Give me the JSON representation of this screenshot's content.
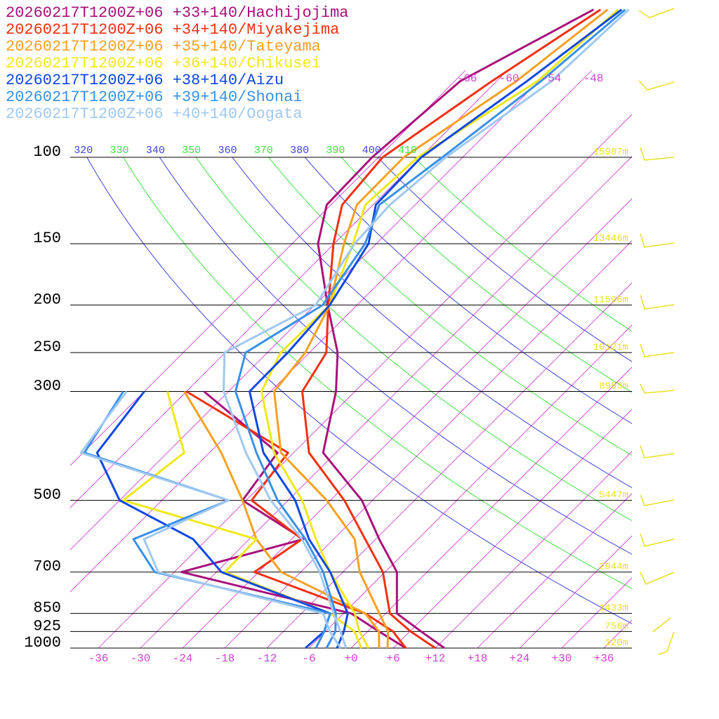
{
  "chart_data": {
    "type": "skewt",
    "levels": [
      1000,
      925,
      850,
      700,
      600,
      500,
      400,
      300,
      250,
      200,
      150,
      125,
      100,
      70,
      50
    ],
    "yticks": [
      100,
      150,
      200,
      250,
      300,
      500,
      700,
      850,
      925,
      1000
    ],
    "height_labels": [
      "15987m",
      "13446m",
      "11596m",
      "10121m",
      "8953m",
      "5447m",
      "2944m",
      "1433m",
      "758m",
      "120m"
    ],
    "xticks": [
      -36,
      -30,
      -24,
      -18,
      -12,
      -6,
      {
        "value": 0,
        "label": "+0"
      },
      {
        "value": 6,
        "label": "+6"
      },
      {
        "value": 12,
        "label": "+12"
      },
      {
        "value": 18,
        "label": "+18"
      },
      {
        "value": 24,
        "label": "+24"
      },
      {
        "value": 30,
        "label": "+30"
      },
      {
        "value": 36,
        "label": "+36"
      }
    ],
    "isotherm_labels": [
      -66,
      -60,
      -54,
      -48
    ],
    "theta_lines": [
      320,
      330,
      340,
      350,
      360,
      370,
      380,
      390,
      400,
      410
    ],
    "theta_colors": [
      "#4040e0",
      "#40e040"
    ],
    "isotherm_color": "#d030d0",
    "series": [
      {
        "name": "20260217T1200Z+06 +33+140/Hachijojima",
        "color": "#a8107a",
        "temperature": [
          13.3,
          7.6,
          1.6,
          -4.3,
          -11.5,
          -19.5,
          -31.8,
          -38.7,
          -44,
          -52.2,
          -62.3,
          -66.6,
          -66.9,
          -65.2,
          -56.4
        ],
        "dewpoint": [
          7.8,
          1.6,
          -4.9,
          -35,
          -22.3,
          -36.5,
          -38.3,
          -57.5,
          null,
          null,
          null,
          null,
          null,
          null,
          null
        ]
      },
      {
        "name": "20260217T1200Z+06 +34+140/Miyakejima",
        "color": "#f03010",
        "temperature": [
          12,
          6.1,
          0.6,
          -6.3,
          -13.5,
          -22,
          -33.8,
          -43.5,
          -45.6,
          -52.1,
          -60.1,
          -64.4,
          -65.4,
          -60.7,
          -55.4
        ],
        "dewpoint": [
          7.8,
          3.6,
          -2.9,
          -24.6,
          -22.5,
          -35.2,
          -36.8,
          -60,
          null,
          null,
          null,
          null,
          null,
          null,
          null
        ]
      },
      {
        "name": "20260217T1200Z+06 +35+140/Tateyama",
        "color": "#f8a020",
        "temperature": [
          5.2,
          2.9,
          -0.9,
          -9.6,
          -15,
          -24.5,
          -37.8,
          -47.5,
          -48.6,
          -51.9,
          -58.6,
          -62.3,
          -62.4,
          -57.2,
          -54.4
        ],
        "dewpoint": [
          4,
          1.6,
          -2.9,
          -20.8,
          -29,
          -36.5,
          -46.3,
          -60.3,
          null,
          null,
          null,
          null,
          null,
          null,
          null
        ]
      },
      {
        "name": "20260217T1200Z+06 +36+140/Chikusei",
        "color": "#f0e818",
        "temperature": [
          2.5,
          -1.2,
          -4.4,
          -13.8,
          -20.5,
          -28,
          -38.8,
          -49.3,
          -52.1,
          -51.9,
          -57.3,
          -61.1,
          -60.4,
          -54.2,
          -52.9
        ],
        "dewpoint": [
          1.5,
          -1.9,
          -7.9,
          -28.8,
          -29,
          -53.5,
          -51.6,
          -62.7,
          null,
          null,
          null,
          null,
          null,
          null,
          null
        ]
      },
      {
        "name": "20260217T1200Z+06 +38+140/Aizu",
        "color": "#1048e0",
        "temperature": [
          -2,
          -3.4,
          -5.4,
          -13.8,
          -21.5,
          -29,
          -40.3,
          -51,
          -51.1,
          -51.9,
          -55.1,
          -59.6,
          -59.9,
          -55.7,
          -52.4
        ],
        "dewpoint": [
          -6.5,
          -6.2,
          -7.9,
          -29.3,
          -38,
          -54,
          -64,
          -66,
          null,
          null,
          null,
          null,
          null,
          null,
          null
        ]
      },
      {
        "name": "20260217T1200Z+06 +39+140/Shonai",
        "color": "#3890e8",
        "temperature": [
          -3.5,
          -4.6,
          -7.1,
          -14.8,
          -22,
          -31.5,
          -41.3,
          -53,
          -57.1,
          -52.9,
          -55.6,
          -59.1,
          -56.9,
          -53.7,
          -51.9
        ],
        "dewpoint": [
          -5,
          -6.2,
          -7.9,
          -38.8,
          -46.5,
          -38.5,
          -65.8,
          -69,
          null,
          null,
          null,
          null,
          null,
          null,
          null
        ]
      },
      {
        "name": "20260217T1200Z+06 +40+140/Oogata",
        "color": "#a0c8f0",
        "temperature": [
          -0.7,
          -3.9,
          -7.4,
          -15.3,
          -22.5,
          -32.5,
          -42.8,
          -54.7,
          -60.1,
          -53.9,
          -57.1,
          -57.6,
          -56.4,
          -52.2,
          -51.4
        ],
        "dewpoint": [
          -1.5,
          -5.4,
          -8.9,
          -38.3,
          -45,
          -38.5,
          -66.3,
          -68.5,
          null,
          null,
          null,
          null,
          null,
          null,
          null
        ]
      }
    ]
  }
}
